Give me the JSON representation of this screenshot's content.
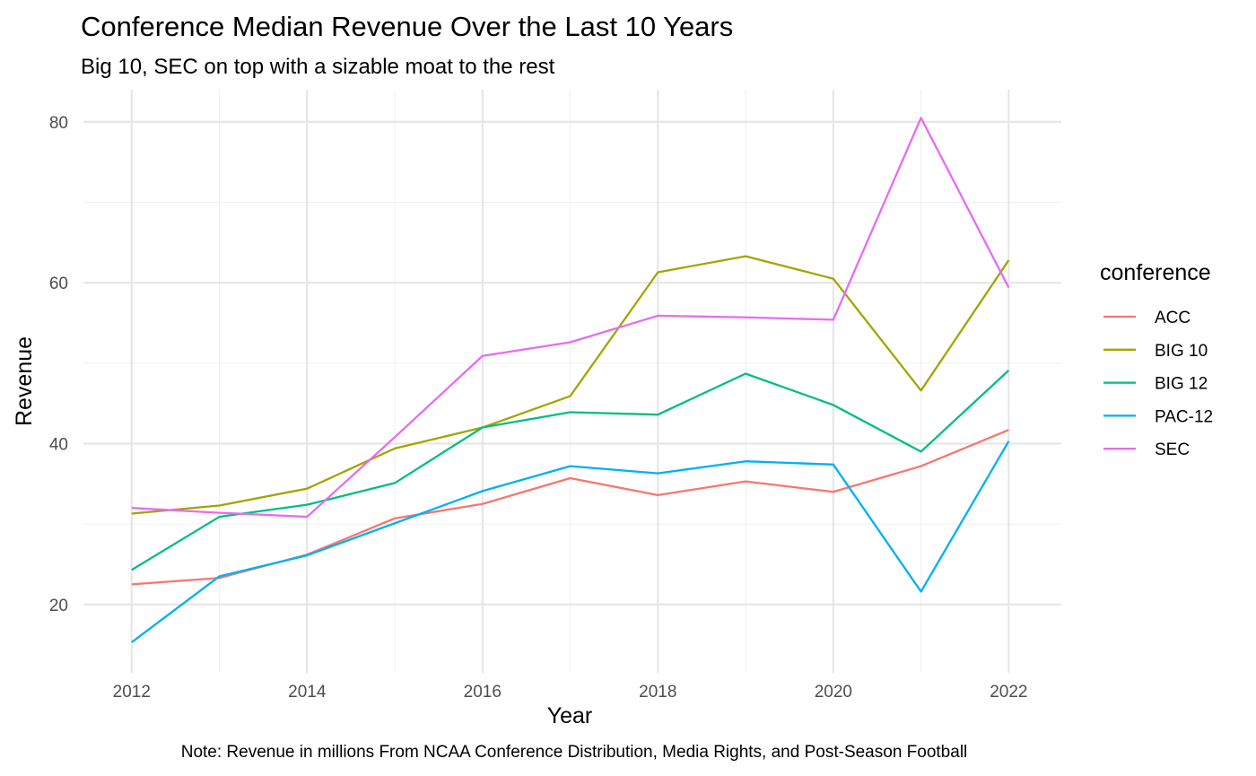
{
  "chart_data": {
    "type": "line",
    "title": "Conference Median Revenue Over the Last 10 Years",
    "subtitle": "Big 10, SEC on top with a sizable moat to the rest",
    "caption": "Note: Revenue in millions From NCAA Conference Distribution, Media Rights, and Post-Season Football",
    "xlabel": "Year",
    "ylabel": "Revenue",
    "x": [
      2012,
      2013,
      2014,
      2015,
      2016,
      2017,
      2018,
      2019,
      2020,
      2021,
      2022
    ],
    "xlim": [
      2011.45,
      2022.6
    ],
    "ylim": [
      11.5,
      84
    ],
    "x_ticks": [
      2012,
      2014,
      2016,
      2018,
      2020,
      2022
    ],
    "x_tick_labels": [
      "2012",
      "2014",
      "2016",
      "2018",
      "2020",
      "2022"
    ],
    "y_ticks": [
      20,
      40,
      60,
      80
    ],
    "y_tick_labels": [
      "20",
      "40",
      "60",
      "80"
    ],
    "y_minor_ticks": [
      30,
      50,
      70
    ],
    "grid": true,
    "legend": {
      "title": "conference",
      "position": "right"
    },
    "series": [
      {
        "name": "ACC",
        "color": "#F8766D",
        "values": [
          22.5,
          23.3,
          26.2,
          30.7,
          32.5,
          35.7,
          33.6,
          35.3,
          34.0,
          37.2,
          41.7
        ]
      },
      {
        "name": "BIG 10",
        "color": "#A3A500",
        "values": [
          31.3,
          32.3,
          34.4,
          39.4,
          42.0,
          45.9,
          61.3,
          63.3,
          60.5,
          46.6,
          62.8
        ]
      },
      {
        "name": "BIG 12",
        "color": "#00BF7D",
        "values": [
          24.3,
          30.9,
          32.4,
          35.1,
          42.0,
          43.9,
          43.6,
          48.7,
          44.8,
          39.0,
          49.1
        ]
      },
      {
        "name": "PAC-12",
        "color": "#00B0F6",
        "values": [
          15.3,
          23.5,
          26.1,
          30.1,
          34.1,
          37.2,
          36.3,
          37.8,
          37.4,
          21.6,
          40.3
        ]
      },
      {
        "name": "SEC",
        "color": "#E76BF3",
        "values": [
          32.0,
          31.4,
          30.9,
          40.8,
          50.9,
          52.6,
          55.9,
          55.7,
          55.4,
          80.5,
          59.4
        ]
      }
    ]
  }
}
